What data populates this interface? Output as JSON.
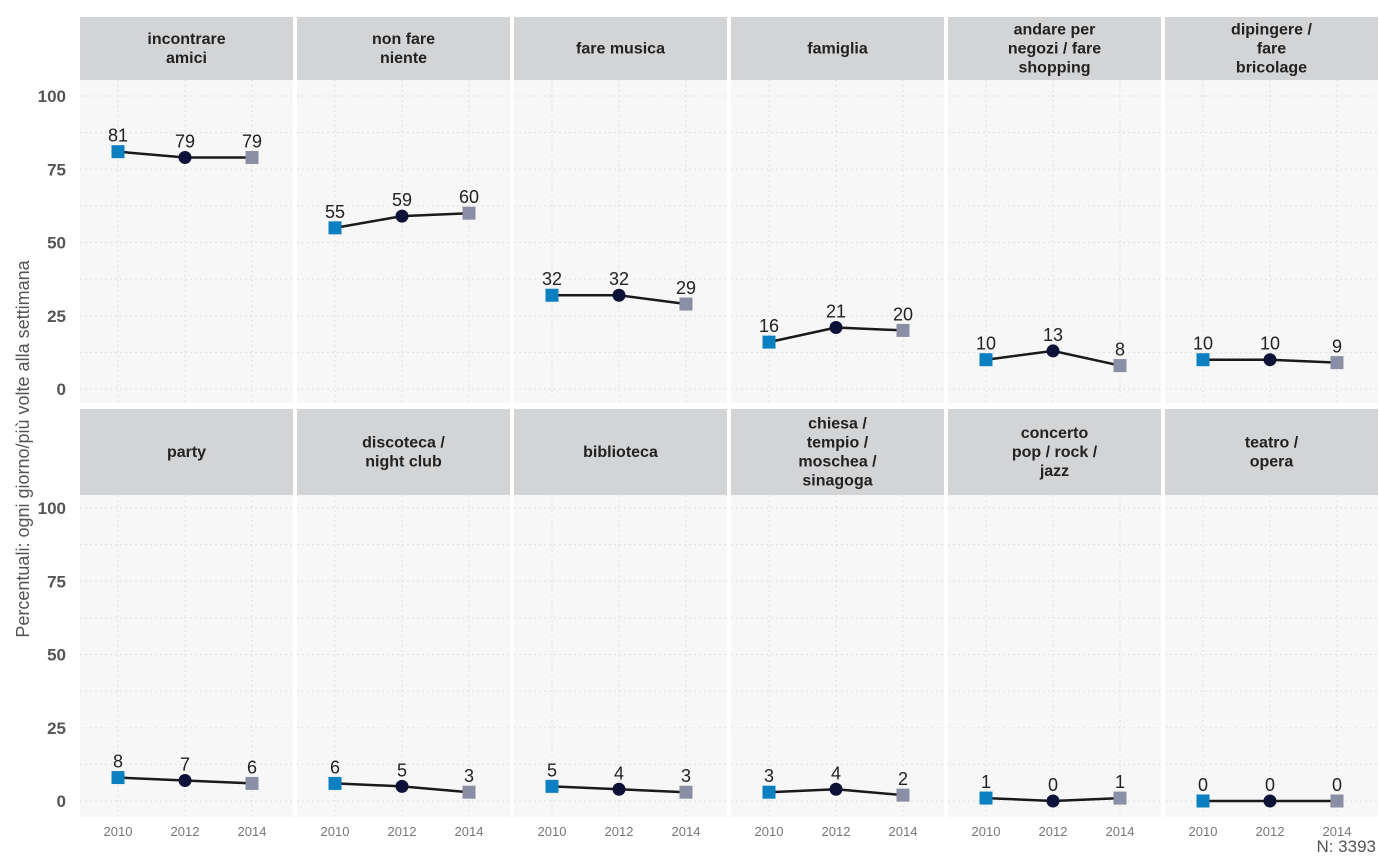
{
  "chart_data": {
    "type": "line",
    "ylabel": "Percentuali: ogni giorno/più volte alla settimana",
    "caption": "N: 3393",
    "x": [
      "2010",
      "2012",
      "2014"
    ],
    "yticks": [
      "0",
      "25",
      "50",
      "75",
      "100"
    ],
    "ylim": [
      0,
      100
    ],
    "facet_rows": 2,
    "facet_cols": 6,
    "marker_colors": [
      "#0a7fc2",
      "#0d1238",
      "#8a8fa6"
    ],
    "line_color": "#1a1a1a",
    "facets": [
      {
        "title": [
          "incontrare",
          "amici"
        ],
        "values": [
          81,
          79,
          79
        ]
      },
      {
        "title": [
          "non fare",
          "niente"
        ],
        "values": [
          55,
          59,
          60
        ]
      },
      {
        "title": [
          "fare musica"
        ],
        "values": [
          32,
          32,
          29
        ]
      },
      {
        "title": [
          "famiglia"
        ],
        "values": [
          16,
          21,
          20
        ]
      },
      {
        "title": [
          "andare per",
          "negozi / fare",
          "shopping"
        ],
        "values": [
          10,
          13,
          8
        ]
      },
      {
        "title": [
          "dipingere /",
          "fare",
          "bricolage"
        ],
        "values": [
          10,
          10,
          9
        ]
      },
      {
        "title": [
          "party"
        ],
        "values": [
          8,
          7,
          6
        ]
      },
      {
        "title": [
          "discoteca /",
          "night club"
        ],
        "values": [
          6,
          5,
          3
        ]
      },
      {
        "title": [
          "biblioteca"
        ],
        "values": [
          5,
          4,
          3
        ]
      },
      {
        "title": [
          "chiesa /",
          "tempio /",
          "moschea /",
          "sinagoga"
        ],
        "values": [
          3,
          4,
          2
        ]
      },
      {
        "title": [
          "concerto",
          "pop / rock /",
          "jazz"
        ],
        "values": [
          1,
          0,
          1
        ]
      },
      {
        "title": [
          "teatro /",
          "opera"
        ],
        "values": [
          0,
          0,
          0
        ]
      }
    ]
  }
}
